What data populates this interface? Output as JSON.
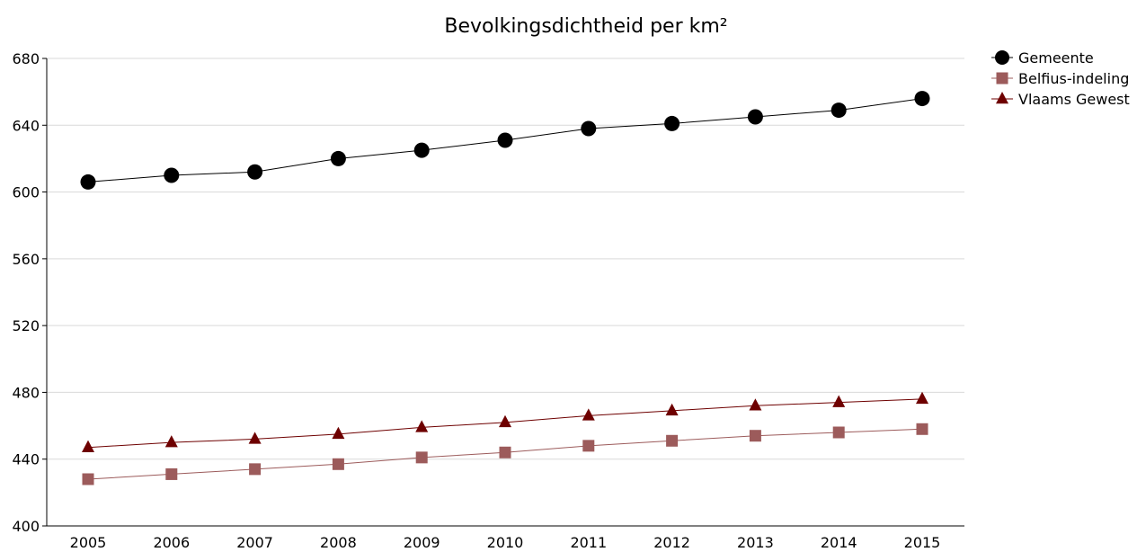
{
  "chart_data": {
    "type": "line",
    "title": "Bevolkingsdichtheid per km²",
    "xlabel": "",
    "ylabel": "",
    "x": [
      2005,
      2006,
      2007,
      2008,
      2009,
      2010,
      2011,
      2012,
      2013,
      2014,
      2015
    ],
    "ylim": [
      400,
      680
    ],
    "yticks": [
      400,
      440,
      480,
      520,
      560,
      600,
      640,
      680
    ],
    "grid": true,
    "legend_position": "top-right",
    "series": [
      {
        "name": "Gemeente",
        "marker": "circle",
        "color": "#000000",
        "values": [
          606,
          610,
          612,
          620,
          625,
          631,
          638,
          641,
          645,
          649,
          656
        ]
      },
      {
        "name": "Belfius-indeling",
        "marker": "square",
        "color": "#9c5b5b",
        "values": [
          428,
          431,
          434,
          437,
          441,
          444,
          448,
          451,
          454,
          456,
          458
        ]
      },
      {
        "name": "Vlaams Gewest",
        "marker": "triangle",
        "color": "#6e0000",
        "values": [
          447,
          450,
          452,
          455,
          459,
          462,
          466,
          469,
          472,
          474,
          476
        ]
      }
    ]
  }
}
